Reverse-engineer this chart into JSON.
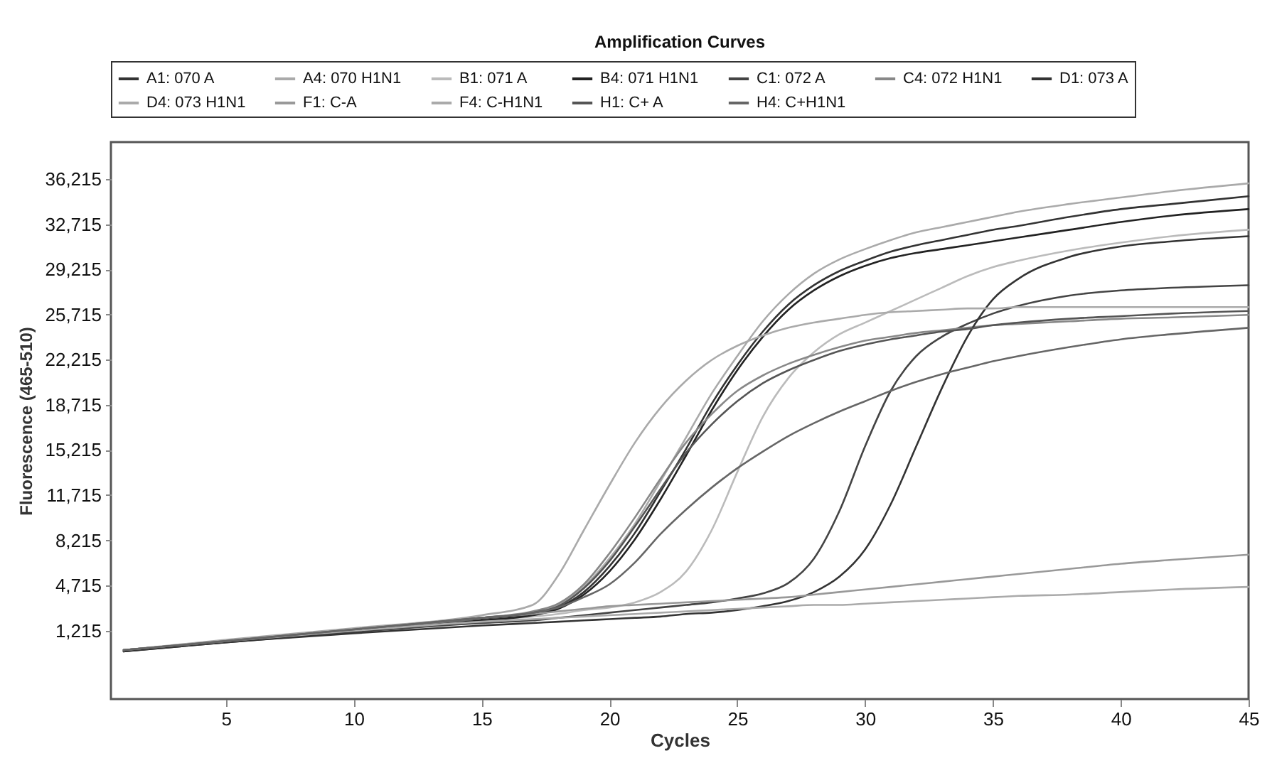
{
  "chart_data": {
    "type": "line",
    "title": "Amplification Curves",
    "xlabel": "Cycles",
    "ylabel": "Fluorescence (465-510)",
    "x": [
      1,
      5,
      10,
      15,
      17,
      18,
      19,
      20,
      21,
      22,
      23,
      24,
      25,
      26,
      27,
      28,
      29,
      30,
      31,
      32,
      33,
      34,
      35,
      36,
      38,
      40,
      42,
      45
    ],
    "xlim": [
      0.5,
      45
    ],
    "xticks": [
      5,
      10,
      15,
      20,
      25,
      30,
      35,
      40,
      45
    ],
    "ylim": [
      -4100,
      39100
    ],
    "yticks": [
      {
        "value": 1215,
        "label": "1,215"
      },
      {
        "value": 4715,
        "label": "4,715"
      },
      {
        "value": 8215,
        "label": "8,215"
      },
      {
        "value": 11715,
        "label": "11,715"
      },
      {
        "value": 15215,
        "label": "15,215"
      },
      {
        "value": 18715,
        "label": "18,715"
      },
      {
        "value": 22215,
        "label": "22,215"
      },
      {
        "value": 25715,
        "label": "25,715"
      },
      {
        "value": 29215,
        "label": "29,215"
      },
      {
        "value": 32715,
        "label": "32,715"
      },
      {
        "value": 36215,
        "label": "36,215"
      }
    ],
    "grid": false,
    "legend": "top",
    "marker": "none",
    "series": [
      {
        "name": "A1: 070 A",
        "color": "#333333",
        "values": [
          -300,
          400,
          1300,
          2100,
          2500,
          3000,
          4200,
          6200,
          8800,
          12000,
          15300,
          18800,
          21800,
          24400,
          26500,
          28000,
          29100,
          29900,
          30600,
          31100,
          31500,
          31900,
          32300,
          32600,
          33300,
          33900,
          34300,
          34900
        ]
      },
      {
        "name": "A4: 070 H1N1",
        "color": "#aaaaaa",
        "values": [
          -300,
          400,
          1300,
          2200,
          2600,
          3200,
          4600,
          6800,
          9500,
          12800,
          16200,
          19600,
          22500,
          25200,
          27300,
          28900,
          30000,
          30800,
          31500,
          32100,
          32500,
          32900,
          33300,
          33700,
          34300,
          34800,
          35300,
          35900
        ]
      },
      {
        "name": "B1: 071 A",
        "color": "#bbbbbb",
        "values": [
          -300,
          400,
          1200,
          2000,
          2300,
          2500,
          2800,
          3000,
          3400,
          4200,
          5800,
          9000,
          13500,
          17800,
          20800,
          22800,
          24200,
          25100,
          26000,
          26900,
          27800,
          28700,
          29400,
          29900,
          30700,
          31300,
          31800,
          32300
        ]
      },
      {
        "name": "B4: 071 H1N1",
        "color": "#222222",
        "values": [
          -400,
          400,
          1200,
          2000,
          2400,
          2900,
          4000,
          5800,
          8300,
          11400,
          14800,
          18300,
          21400,
          24000,
          26100,
          27600,
          28700,
          29500,
          30100,
          30500,
          30800,
          31100,
          31400,
          31700,
          32300,
          32900,
          33400,
          33900
        ]
      },
      {
        "name": "C1: 072 A",
        "color": "#444444",
        "values": [
          -400,
          300,
          1100,
          1800,
          2000,
          2200,
          2400,
          2600,
          2800,
          3000,
          3200,
          3400,
          3700,
          4100,
          4900,
          6800,
          10500,
          15500,
          19800,
          22500,
          24000,
          25000,
          25800,
          26400,
          27200,
          27600,
          27800,
          28000
        ]
      },
      {
        "name": "C4: 072 H1N1",
        "color": "#888888",
        "values": [
          -300,
          400,
          1300,
          2200,
          2700,
          3300,
          4800,
          7200,
          10000,
          13000,
          15800,
          18000,
          19800,
          21000,
          21900,
          22600,
          23200,
          23700,
          24000,
          24300,
          24500,
          24700,
          24900,
          25000,
          25200,
          25400,
          25500,
          25700
        ]
      },
      {
        "name": "D1: 073 A",
        "color": "#333333",
        "values": [
          -400,
          300,
          1000,
          1600,
          1800,
          1900,
          2000,
          2100,
          2200,
          2300,
          2500,
          2600,
          2800,
          3100,
          3500,
          4200,
          5400,
          7500,
          11000,
          15500,
          20000,
          24000,
          26900,
          28500,
          30200,
          31000,
          31400,
          31800
        ]
      },
      {
        "name": "D4: 073 H1N1",
        "color": "#aaaaaa",
        "values": [
          -300,
          500,
          1400,
          2400,
          3200,
          5500,
          9000,
          12500,
          15800,
          18500,
          20600,
          22200,
          23300,
          24100,
          24700,
          25100,
          25400,
          25700,
          25900,
          26000,
          26100,
          26200,
          26200,
          26300,
          26300,
          26300,
          26300,
          26300
        ]
      },
      {
        "name": "F1: C-A",
        "color": "#999999",
        "values": [
          -300,
          400,
          1300,
          2200,
          2500,
          2700,
          2900,
          3100,
          3200,
          3300,
          3400,
          3500,
          3600,
          3700,
          3800,
          4000,
          4200,
          4400,
          4600,
          4800,
          5000,
          5200,
          5400,
          5600,
          6000,
          6400,
          6700,
          7100
        ]
      },
      {
        "name": "F4: C-H1N1",
        "color": "#aaaaaa",
        "values": [
          -300,
          400,
          1200,
          1900,
          2100,
          2200,
          2300,
          2400,
          2500,
          2600,
          2700,
          2800,
          2900,
          3000,
          3100,
          3200,
          3200,
          3300,
          3400,
          3500,
          3600,
          3700,
          3800,
          3900,
          4000,
          4200,
          4400,
          4600
        ]
      },
      {
        "name": "H1: C+ A",
        "color": "#555555",
        "values": [
          -300,
          400,
          1300,
          2200,
          2600,
          3100,
          4500,
          6600,
          9300,
          12200,
          15000,
          17200,
          19000,
          20400,
          21400,
          22200,
          22900,
          23400,
          23800,
          24100,
          24400,
          24600,
          24900,
          25100,
          25400,
          25600,
          25800,
          26000
        ]
      },
      {
        "name": "H4: C+H1N1",
        "color": "#666666",
        "values": [
          -300,
          400,
          1300,
          2200,
          2600,
          3000,
          3800,
          4800,
          6500,
          8700,
          10600,
          12300,
          13800,
          15100,
          16300,
          17300,
          18200,
          19000,
          19800,
          20500,
          21100,
          21600,
          22100,
          22500,
          23200,
          23800,
          24200,
          24700
        ]
      }
    ]
  }
}
